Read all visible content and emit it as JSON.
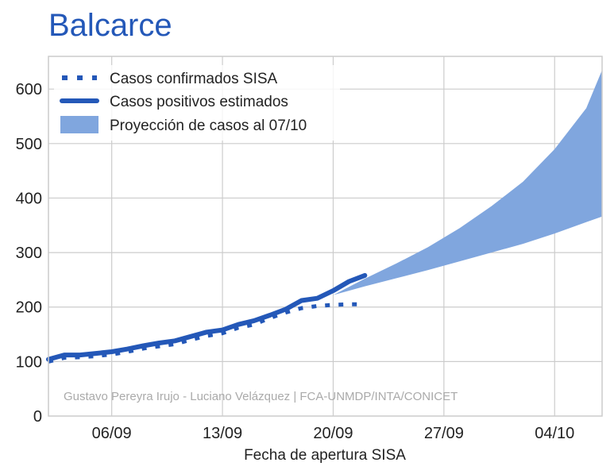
{
  "chart_data": {
    "type": "line",
    "title": "Balcarce",
    "xlabel": "Fecha de apertura SISA",
    "ylabel": "",
    "ylim": [
      0,
      660
    ],
    "xlim": [
      "2020-09-02",
      "2020-10-07"
    ],
    "x_ticks": [
      {
        "date": "2020-09-06",
        "label": "06/09"
      },
      {
        "date": "2020-09-13",
        "label": "13/09"
      },
      {
        "date": "2020-09-20",
        "label": "20/09"
      },
      {
        "date": "2020-09-27",
        "label": "27/09"
      },
      {
        "date": "2020-10-04",
        "label": "04/10"
      }
    ],
    "y_ticks": [
      0,
      100,
      200,
      300,
      400,
      500,
      600
    ],
    "grid": true,
    "legend_position": "top-left",
    "series": [
      {
        "name": "Casos confirmados SISA",
        "style": "dotted",
        "color": "#2458b8",
        "points": [
          {
            "x": "2020-09-02",
            "y": 100
          },
          {
            "x": "2020-09-03",
            "y": 107
          },
          {
            "x": "2020-09-04",
            "y": 108
          },
          {
            "x": "2020-09-05",
            "y": 110
          },
          {
            "x": "2020-09-06",
            "y": 113
          },
          {
            "x": "2020-09-07",
            "y": 118
          },
          {
            "x": "2020-09-08",
            "y": 124
          },
          {
            "x": "2020-09-09",
            "y": 128
          },
          {
            "x": "2020-09-10",
            "y": 132
          },
          {
            "x": "2020-09-11",
            "y": 140
          },
          {
            "x": "2020-09-12",
            "y": 147
          },
          {
            "x": "2020-09-13",
            "y": 152
          },
          {
            "x": "2020-09-14",
            "y": 162
          },
          {
            "x": "2020-09-15",
            "y": 168
          },
          {
            "x": "2020-09-16",
            "y": 180
          },
          {
            "x": "2020-09-17",
            "y": 190
          },
          {
            "x": "2020-09-18",
            "y": 198
          },
          {
            "x": "2020-09-19",
            "y": 202
          },
          {
            "x": "2020-09-20",
            "y": 204
          },
          {
            "x": "2020-09-21",
            "y": 205
          },
          {
            "x": "2020-09-22",
            "y": 205
          }
        ]
      },
      {
        "name": "Casos positivos estimados",
        "style": "solid",
        "color": "#2458b8",
        "points": [
          {
            "x": "2020-09-02",
            "y": 104
          },
          {
            "x": "2020-09-03",
            "y": 112
          },
          {
            "x": "2020-09-04",
            "y": 112
          },
          {
            "x": "2020-09-05",
            "y": 115
          },
          {
            "x": "2020-09-06",
            "y": 118
          },
          {
            "x": "2020-09-07",
            "y": 123
          },
          {
            "x": "2020-09-08",
            "y": 129
          },
          {
            "x": "2020-09-09",
            "y": 134
          },
          {
            "x": "2020-09-10",
            "y": 138
          },
          {
            "x": "2020-09-11",
            "y": 146
          },
          {
            "x": "2020-09-12",
            "y": 154
          },
          {
            "x": "2020-09-13",
            "y": 158
          },
          {
            "x": "2020-09-14",
            "y": 168
          },
          {
            "x": "2020-09-15",
            "y": 175
          },
          {
            "x": "2020-09-16",
            "y": 185
          },
          {
            "x": "2020-09-17",
            "y": 196
          },
          {
            "x": "2020-09-18",
            "y": 212
          },
          {
            "x": "2020-09-19",
            "y": 216
          },
          {
            "x": "2020-09-20",
            "y": 230
          },
          {
            "x": "2020-09-21",
            "y": 247
          },
          {
            "x": "2020-09-22",
            "y": 258
          }
        ]
      }
    ],
    "projection": {
      "name": "Proyección de casos al 07/10",
      "color": "#80a6de",
      "upper": [
        {
          "x": "2020-09-20",
          "y": 222
        },
        {
          "x": "2020-09-22",
          "y": 252
        },
        {
          "x": "2020-09-24",
          "y": 280
        },
        {
          "x": "2020-09-26",
          "y": 310
        },
        {
          "x": "2020-09-28",
          "y": 345
        },
        {
          "x": "2020-09-30",
          "y": 385
        },
        {
          "x": "2020-10-02",
          "y": 430
        },
        {
          "x": "2020-10-04",
          "y": 490
        },
        {
          "x": "2020-10-06",
          "y": 565
        },
        {
          "x": "2020-10-07",
          "y": 635
        }
      ],
      "lower": [
        {
          "x": "2020-09-20",
          "y": 222
        },
        {
          "x": "2020-09-22",
          "y": 238
        },
        {
          "x": "2020-09-24",
          "y": 253
        },
        {
          "x": "2020-09-26",
          "y": 268
        },
        {
          "x": "2020-09-28",
          "y": 284
        },
        {
          "x": "2020-09-30",
          "y": 300
        },
        {
          "x": "2020-10-02",
          "y": 316
        },
        {
          "x": "2020-10-04",
          "y": 335
        },
        {
          "x": "2020-10-06",
          "y": 356
        },
        {
          "x": "2020-10-07",
          "y": 366
        }
      ]
    },
    "annotation": "Gustavo Pereyra Irujo - Luciano Velázquez | FCA-UNMDP/INTA/CONICET"
  }
}
